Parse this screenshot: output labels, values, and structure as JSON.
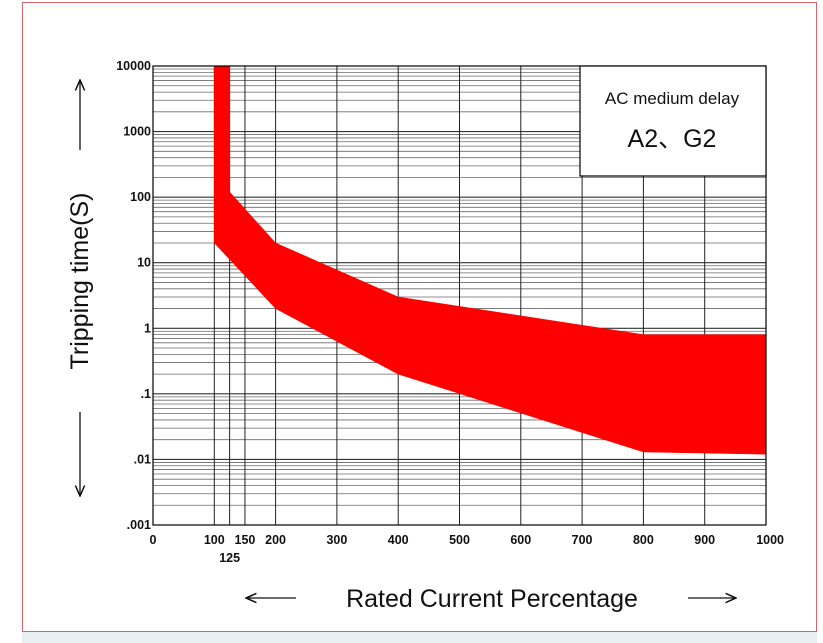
{
  "chart_data": {
    "type": "area",
    "ylabel": "Tripping time(S)",
    "xlabel": "Rated Current Percentage",
    "y_scale": "log",
    "ylim": [
      0.001,
      10000
    ],
    "xlim": [
      0,
      1000
    ],
    "x_ticks": [
      "0",
      "100",
      "125",
      "150",
      "200",
      "300",
      "400",
      "500",
      "600",
      "700",
      "800",
      "900",
      "1000"
    ],
    "x_tick_values": [
      0,
      100,
      125,
      150,
      200,
      300,
      400,
      500,
      600,
      700,
      800,
      900,
      1000
    ],
    "y_ticks": [
      "10000",
      "1000",
      "100",
      "10",
      "1",
      ".1",
      ".01",
      ".001"
    ],
    "y_tick_values": [
      10000,
      1000,
      100,
      10,
      1,
      0.1,
      0.01,
      0.001
    ],
    "grid": true,
    "annotation": {
      "line1": "AC medium delay",
      "line2": "A2、G2"
    },
    "band": {
      "color": "#ff0000",
      "upper": [
        {
          "x": 100,
          "y": 10000
        },
        {
          "x": 125,
          "y": 10000
        },
        {
          "x": 125,
          "y": 120
        },
        {
          "x": 200,
          "y": 20
        },
        {
          "x": 400,
          "y": 3
        },
        {
          "x": 800,
          "y": 0.8
        },
        {
          "x": 1000,
          "y": 0.8
        }
      ],
      "lower": [
        {
          "x": 100,
          "y": 20
        },
        {
          "x": 200,
          "y": 2
        },
        {
          "x": 400,
          "y": 0.2
        },
        {
          "x": 800,
          "y": 0.013
        },
        {
          "x": 1000,
          "y": 0.012
        }
      ]
    }
  }
}
